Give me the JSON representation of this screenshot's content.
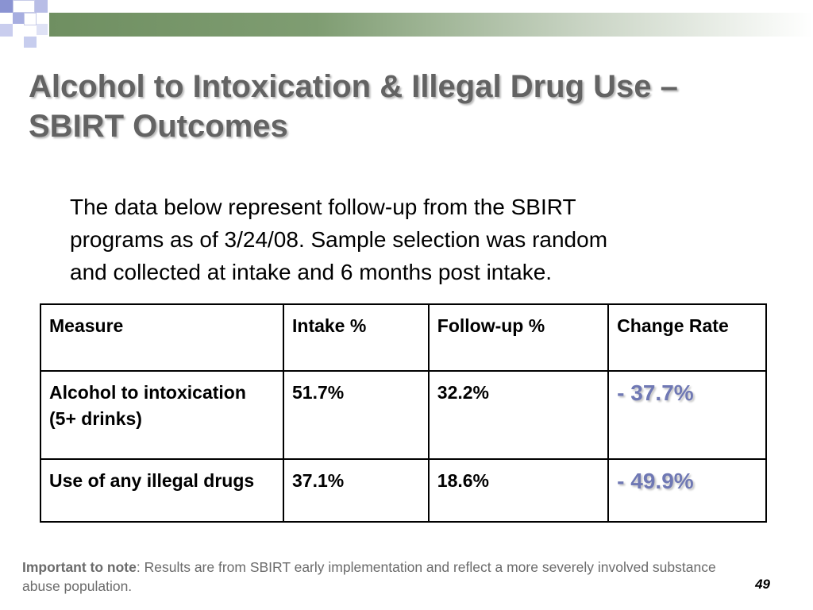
{
  "slide": {
    "title_line1": "Alcohol to Intoxication & Illegal Drug Use –",
    "title_line2": "SBIRT Outcomes",
    "intro_line1": "The data below represent follow-up from the SBIRT",
    "intro_line2": "programs as of 3/24/08.  Sample selection was random",
    "intro_line3": "and collected at intake and 6 months post intake.",
    "page_number": "49"
  },
  "table": {
    "headers": [
      "Measure",
      "Intake %",
      "Follow-up %",
      "Change Rate"
    ],
    "rows": [
      {
        "measure": "Alcohol to intoxication (5+ drinks)",
        "intake": "51.7%",
        "followup": "32.2%",
        "change": "- 37.7%"
      },
      {
        "measure": "Use of any illegal drugs",
        "intake": "37.1%",
        "followup": "18.6%",
        "change": "- 49.9%"
      }
    ]
  },
  "footnote": {
    "label": "Important to note",
    "text": ":  Results are from SBIRT early implementation and reflect a more severely involved substance abuse population."
  },
  "colors": {
    "title_text": "#636363",
    "change_rate_text": "#6f78b4",
    "band_green": "#6f8f61",
    "accent_blue": "#8a93d2"
  }
}
